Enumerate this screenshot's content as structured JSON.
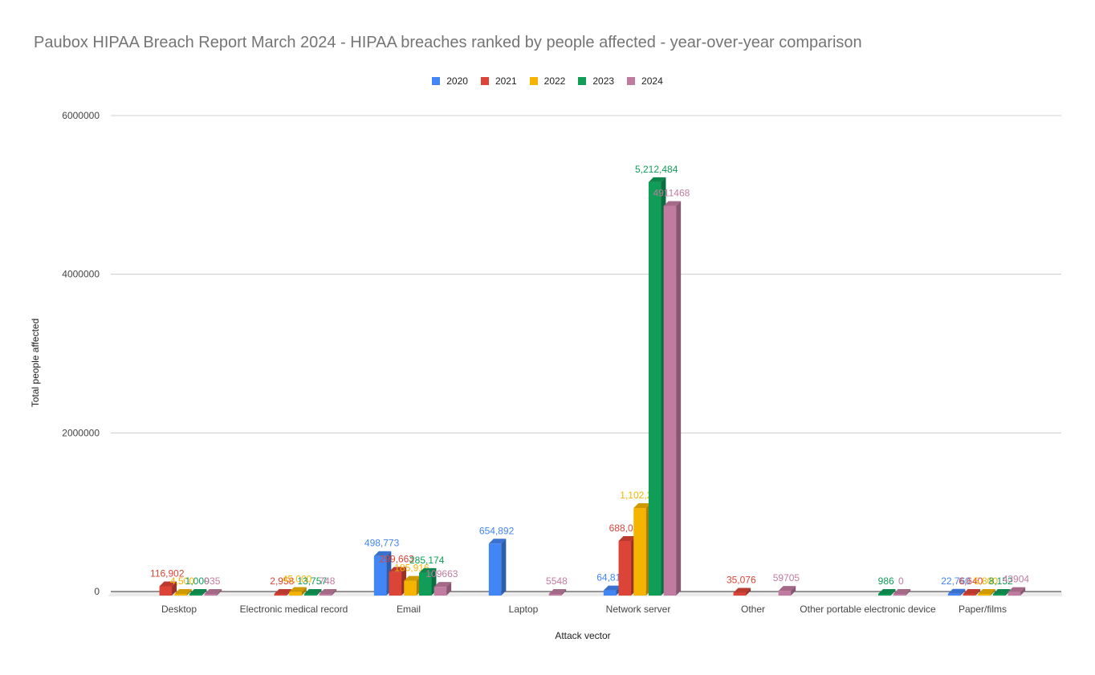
{
  "chart_data": {
    "type": "bar",
    "title": "Paubox HIPAA Breach Report March 2024 - HIPAA breaches ranked by people affected - year-over-year comparison",
    "xlabel": "Attack vector",
    "ylabel": "Total people affected",
    "ylim": [
      0,
      6000000
    ],
    "yticks": [
      "0",
      "2000000",
      "4000000",
      "6000000"
    ],
    "grid": true,
    "legend_position": "top",
    "categories": [
      "Desktop",
      "Electronic medical record",
      "Email",
      "Laptop",
      "Network server",
      "Other",
      "Other portable electronic device",
      "Paper/films"
    ],
    "series": [
      {
        "name": "2020",
        "color": "#4285f4",
        "values": [
          0,
          0,
          498773,
          654892,
          64810,
          0,
          0,
          22760
        ],
        "labels": [
          "",
          "",
          "498,773",
          "654,892",
          "64,810",
          "",
          "",
          "22,760"
        ]
      },
      {
        "name": "2021",
        "color": "#db4437",
        "values": [
          116902,
          2958,
          299663,
          0,
          688037,
          35076,
          0,
          6640
        ],
        "labels": [
          "116,902",
          "2,958",
          "299,663",
          "",
          "688,037",
          "35,076",
          "",
          "6,640"
        ]
      },
      {
        "name": "2022",
        "color": "#f4b400",
        "values": [
          4500,
          45000,
          185916,
          0,
          1102298,
          0,
          0,
          5800
        ],
        "labels": [
          "4,500",
          "45,000",
          "185,916",
          "",
          "1,102,298",
          "",
          "",
          "5,800"
        ]
      },
      {
        "name": "2023",
        "color": "#0f9d58",
        "values": [
          1000,
          13757,
          285174,
          0,
          5212484,
          0,
          986,
          8152
        ],
        "labels": [
          "1,000",
          "13,757",
          "285,174",
          "",
          "5,212,484",
          "",
          "986",
          "8,152"
        ]
      },
      {
        "name": "2024",
        "color": "#c27ba0",
        "values": [
          935,
          748,
          109663,
          5548,
          4911468,
          59705,
          0,
          43904
        ],
        "labels": [
          "935",
          "748",
          "109663",
          "5548",
          "4911468",
          "59705",
          "0",
          "43904"
        ]
      }
    ]
  }
}
